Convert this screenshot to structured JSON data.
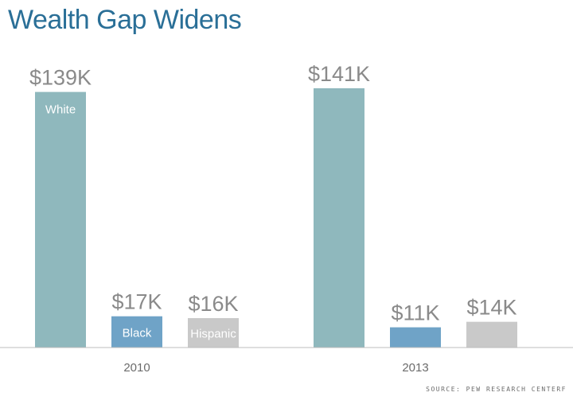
{
  "title": "Wealth Gap Widens",
  "source": "SOURCE: PEW RESEARCH CENTERF",
  "colors": {
    "white": "#8fb8bd",
    "black": "#6fa3c7",
    "hispanic": "#c9c9c9",
    "title": "#2a6f97",
    "value_label": "#8a8a8a",
    "axis": "#bdbdbd"
  },
  "chart_data": {
    "type": "bar",
    "title": "Wealth Gap Widens",
    "categories": [
      "2010",
      "2013"
    ],
    "series": [
      {
        "name": "White",
        "values": [
          139,
          141
        ],
        "labels": [
          "$139K",
          "$141K"
        ],
        "color": "#8fb8bd"
      },
      {
        "name": "Black",
        "values": [
          17,
          11
        ],
        "labels": [
          "$17K",
          "$11K"
        ],
        "color": "#6fa3c7"
      },
      {
        "name": "Hispanic",
        "values": [
          16,
          14
        ],
        "labels": [
          "$16K",
          "$14K"
        ],
        "color": "#c9c9c9"
      }
    ],
    "series_label_shown": [
      [
        true,
        true,
        true
      ],
      [
        false,
        false,
        false
      ]
    ],
    "ylim": [
      0,
      141
    ],
    "grid": false,
    "legend": "none"
  }
}
